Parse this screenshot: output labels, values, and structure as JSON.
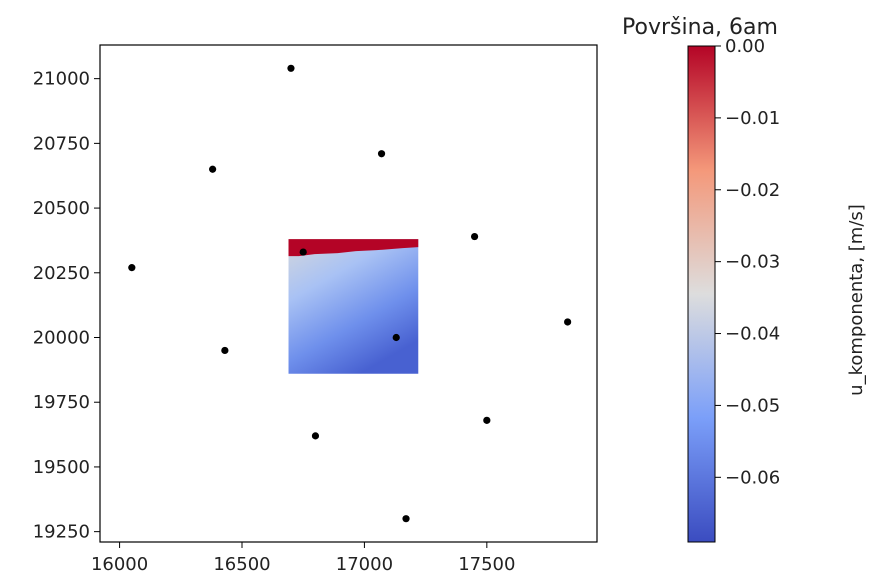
{
  "chart_data": {
    "type": "scatter",
    "title": "Površina, 6am",
    "xlabel": "",
    "ylabel": "",
    "xlim": [
      15920,
      17950
    ],
    "ylim": [
      19210,
      21130
    ],
    "xticks": [
      16000,
      16500,
      17000,
      17500
    ],
    "yticks": [
      19250,
      19500,
      19750,
      20000,
      20250,
      20500,
      20750,
      21000
    ],
    "grid": false,
    "points": [
      {
        "x": 16700,
        "y": 21040
      },
      {
        "x": 16380,
        "y": 20650
      },
      {
        "x": 17070,
        "y": 20710
      },
      {
        "x": 16050,
        "y": 20270
      },
      {
        "x": 17450,
        "y": 20390
      },
      {
        "x": 16750,
        "y": 20330
      },
      {
        "x": 17830,
        "y": 20060
      },
      {
        "x": 17130,
        "y": 20000
      },
      {
        "x": 16430,
        "y": 19950
      },
      {
        "x": 16800,
        "y": 19620
      },
      {
        "x": 17500,
        "y": 19680
      },
      {
        "x": 17170,
        "y": 19300
      }
    ],
    "heatmap": {
      "x_range": [
        16690,
        17220
      ],
      "y_range": [
        19860,
        20380
      ],
      "value_range": [
        -0.069,
        0
      ],
      "high_value_band": "top edge"
    },
    "colorbar": {
      "label": "u_komponenta, [m/s]",
      "cmap": "coolwarm",
      "vmin": -0.069,
      "vmax": 0.0,
      "ticks": [
        0.0,
        -0.01,
        -0.02,
        -0.03,
        -0.04,
        -0.05,
        -0.06
      ],
      "tick_labels": [
        "0.00",
        "−0.01",
        "−0.02",
        "−0.03",
        "−0.04",
        "−0.05",
        "−0.06"
      ]
    }
  }
}
